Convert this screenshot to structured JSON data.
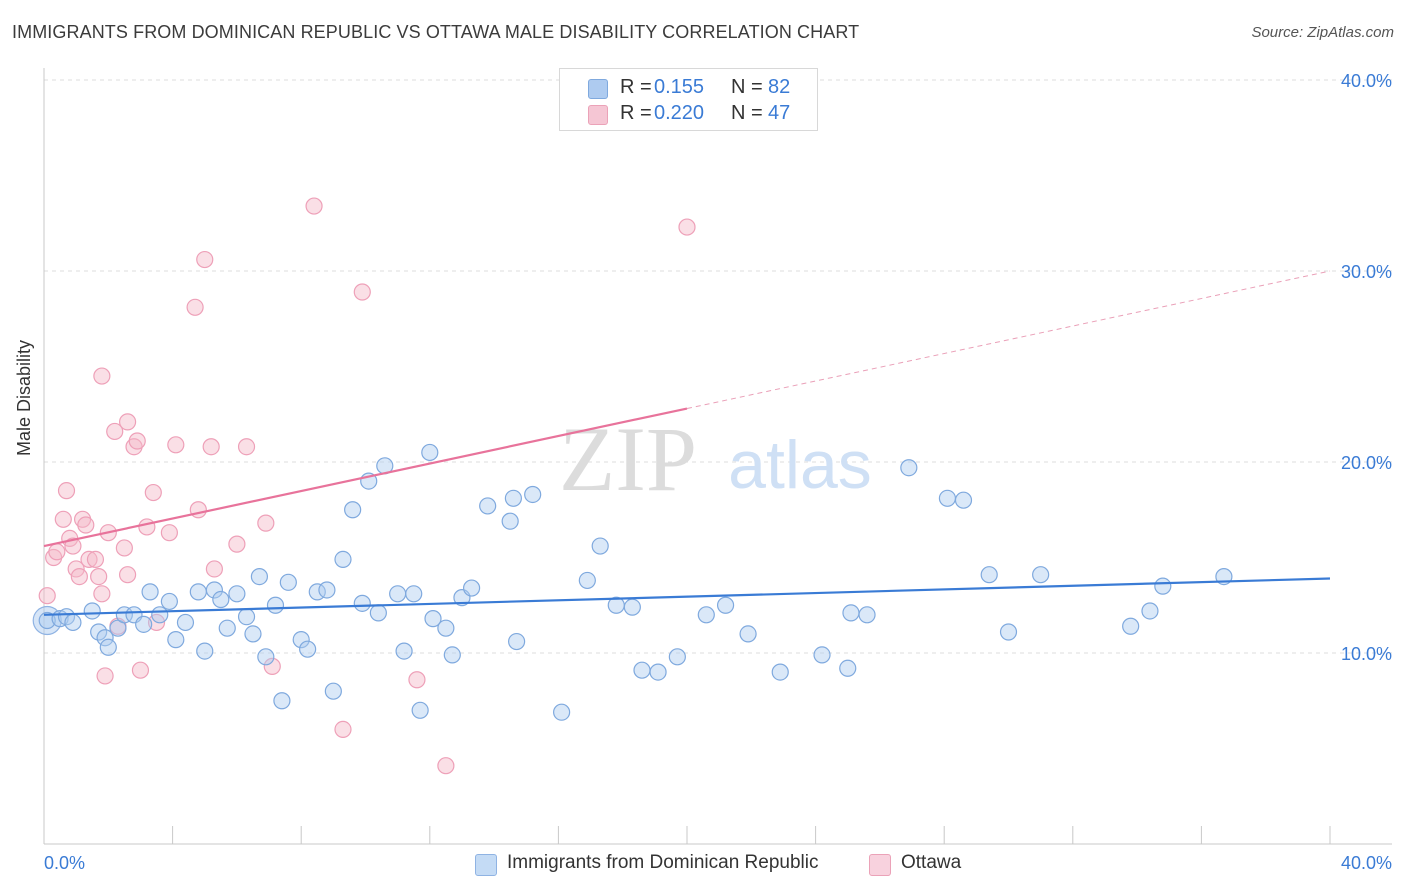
{
  "title": "IMMIGRANTS FROM DOMINICAN REPUBLIC VS OTTAWA MALE DISABILITY CORRELATION CHART",
  "source": "Source: ZipAtlas.com",
  "watermark": {
    "zip": "ZIP",
    "atlas": "atlas"
  },
  "legend": {
    "rows": [
      {
        "r_label": "R =",
        "r_value": "0.155",
        "n_label": "N =",
        "n_value": "82",
        "color": "#aecbf0"
      },
      {
        "r_label": "R =",
        "r_value": "0.220",
        "n_label": "N =",
        "n_value": "47",
        "color": "#f5b8c8"
      }
    ]
  },
  "bottom_legend": {
    "series1": "Immigrants from Dominican Republic",
    "series2": "Ottawa"
  },
  "chart_data": {
    "type": "scatter",
    "title": "IMMIGRANTS FROM DOMINICAN REPUBLIC VS OTTAWA MALE DISABILITY CORRELATION CHART",
    "xlabel": "",
    "ylabel": "Male Disability",
    "xlim": [
      0,
      40
    ],
    "ylim": [
      0,
      40
    ],
    "x_tick_labels": [
      "0.0%",
      "40.0%"
    ],
    "y_tick_labels": [
      "10.0%",
      "20.0%",
      "30.0%",
      "40.0%"
    ],
    "y_ticks": [
      10,
      20,
      30,
      40
    ],
    "grid": "horizontal dashed",
    "colors": {
      "blue": "#3a7bd5",
      "blue_fill": "#aecbf0",
      "pink": "#e8739b",
      "pink_fill": "#f5b8c8",
      "axis_text": "#3a7bd5"
    },
    "series": [
      {
        "name": "Immigrants from Dominican Republic",
        "r": 0.155,
        "n": 82,
        "trend": {
          "x": [
            0,
            40
          ],
          "y": [
            12.0,
            13.9
          ],
          "dashed_from": null
        },
        "points": [
          [
            0.1,
            11.7
          ],
          [
            0.5,
            11.8
          ],
          [
            0.7,
            11.9
          ],
          [
            0.9,
            11.6
          ],
          [
            1.5,
            12.2
          ],
          [
            1.7,
            11.1
          ],
          [
            1.9,
            10.8
          ],
          [
            2.0,
            10.3
          ],
          [
            2.3,
            11.3
          ],
          [
            2.5,
            12.0
          ],
          [
            2.8,
            12.0
          ],
          [
            3.1,
            11.5
          ],
          [
            3.3,
            13.2
          ],
          [
            3.6,
            12.0
          ],
          [
            3.9,
            12.7
          ],
          [
            4.1,
            10.7
          ],
          [
            4.4,
            11.6
          ],
          [
            4.8,
            13.2
          ],
          [
            5.0,
            10.1
          ],
          [
            5.3,
            13.3
          ],
          [
            5.5,
            12.8
          ],
          [
            5.7,
            11.3
          ],
          [
            6.0,
            13.1
          ],
          [
            6.3,
            11.9
          ],
          [
            6.5,
            11.0
          ],
          [
            6.7,
            14.0
          ],
          [
            6.9,
            9.8
          ],
          [
            7.2,
            12.5
          ],
          [
            7.4,
            7.5
          ],
          [
            7.6,
            13.7
          ],
          [
            8.0,
            10.7
          ],
          [
            8.2,
            10.2
          ],
          [
            8.5,
            13.2
          ],
          [
            8.8,
            13.3
          ],
          [
            9.0,
            8.0
          ],
          [
            9.3,
            14.9
          ],
          [
            9.6,
            17.5
          ],
          [
            9.9,
            12.6
          ],
          [
            10.1,
            19.0
          ],
          [
            10.4,
            12.1
          ],
          [
            10.6,
            19.8
          ],
          [
            11.0,
            13.1
          ],
          [
            11.2,
            10.1
          ],
          [
            11.5,
            13.1
          ],
          [
            11.7,
            7.0
          ],
          [
            12.0,
            20.5
          ],
          [
            12.1,
            11.8
          ],
          [
            12.5,
            11.3
          ],
          [
            12.7,
            9.9
          ],
          [
            13.0,
            12.9
          ],
          [
            13.3,
            13.4
          ],
          [
            13.8,
            17.7
          ],
          [
            14.5,
            16.9
          ],
          [
            14.6,
            18.1
          ],
          [
            14.7,
            10.6
          ],
          [
            15.2,
            18.3
          ],
          [
            16.1,
            6.9
          ],
          [
            16.9,
            13.8
          ],
          [
            17.3,
            15.6
          ],
          [
            17.8,
            12.5
          ],
          [
            18.3,
            12.4
          ],
          [
            18.6,
            9.1
          ],
          [
            19.1,
            9.0
          ],
          [
            19.7,
            9.8
          ],
          [
            20.6,
            12.0
          ],
          [
            21.2,
            12.5
          ],
          [
            21.9,
            11.0
          ],
          [
            22.9,
            9.0
          ],
          [
            24.2,
            9.9
          ],
          [
            25.0,
            9.2
          ],
          [
            25.1,
            12.1
          ],
          [
            25.6,
            12.0
          ],
          [
            26.9,
            19.7
          ],
          [
            28.1,
            18.1
          ],
          [
            28.6,
            18.0
          ],
          [
            29.4,
            14.1
          ],
          [
            30.0,
            11.1
          ],
          [
            31.0,
            14.1
          ],
          [
            33.8,
            11.4
          ],
          [
            34.4,
            12.2
          ],
          [
            34.8,
            13.5
          ],
          [
            36.7,
            14.0
          ]
        ]
      },
      {
        "name": "Ottawa",
        "r": 0.22,
        "n": 47,
        "trend": {
          "x": [
            0,
            20.0
          ],
          "y": [
            15.6,
            22.8
          ],
          "dashed_to": [
            40,
            30.0
          ]
        },
        "points": [
          [
            0.1,
            13.0
          ],
          [
            0.3,
            15.0
          ],
          [
            0.4,
            15.3
          ],
          [
            0.6,
            17.0
          ],
          [
            0.7,
            18.5
          ],
          [
            0.8,
            16.0
          ],
          [
            0.9,
            15.6
          ],
          [
            1.0,
            14.4
          ],
          [
            1.1,
            14.0
          ],
          [
            1.2,
            17.0
          ],
          [
            1.3,
            16.7
          ],
          [
            1.4,
            14.9
          ],
          [
            1.6,
            14.9
          ],
          [
            1.7,
            14.0
          ],
          [
            1.8,
            13.1
          ],
          [
            1.8,
            24.5
          ],
          [
            1.9,
            8.8
          ],
          [
            2.0,
            16.3
          ],
          [
            2.2,
            21.6
          ],
          [
            2.3,
            11.4
          ],
          [
            2.5,
            15.5
          ],
          [
            2.6,
            22.1
          ],
          [
            2.6,
            14.1
          ],
          [
            2.8,
            20.8
          ],
          [
            2.9,
            21.1
          ],
          [
            3.0,
            9.1
          ],
          [
            3.2,
            16.6
          ],
          [
            3.4,
            18.4
          ],
          [
            3.5,
            11.6
          ],
          [
            3.9,
            16.3
          ],
          [
            4.1,
            20.9
          ],
          [
            4.7,
            28.1
          ],
          [
            4.8,
            17.5
          ],
          [
            5.0,
            30.6
          ],
          [
            5.2,
            20.8
          ],
          [
            5.3,
            14.4
          ],
          [
            6.0,
            15.7
          ],
          [
            6.3,
            20.8
          ],
          [
            6.9,
            16.8
          ],
          [
            7.1,
            9.3
          ],
          [
            8.4,
            33.4
          ],
          [
            9.3,
            6.0
          ],
          [
            9.9,
            28.9
          ],
          [
            11.6,
            8.6
          ],
          [
            12.5,
            4.1
          ],
          [
            20.0,
            32.3
          ]
        ]
      }
    ]
  }
}
